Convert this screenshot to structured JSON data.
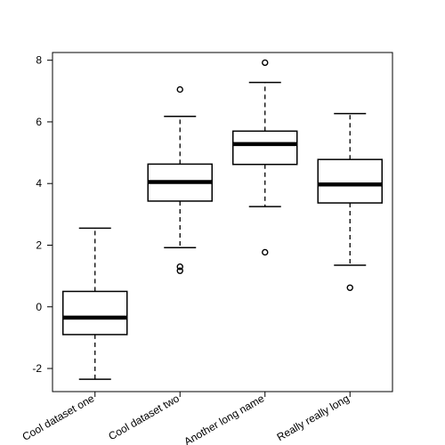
{
  "chart_data": {
    "type": "boxplot",
    "categories": [
      "Cool dataset one",
      "Cool dataset two",
      "Another long name",
      "Really really long"
    ],
    "boxes": [
      {
        "whisker_low": -2.35,
        "q1": -0.9,
        "median": -0.35,
        "q3": 0.5,
        "whisker_high": 2.55,
        "outliers": []
      },
      {
        "whisker_low": 1.92,
        "q1": 3.43,
        "median": 4.05,
        "q3": 4.63,
        "whisker_high": 6.18,
        "outliers": [
          7.05,
          1.3,
          1.17
        ]
      },
      {
        "whisker_low": 3.25,
        "q1": 4.62,
        "median": 5.28,
        "q3": 5.7,
        "whisker_high": 7.28,
        "outliers": [
          7.92,
          1.77
        ]
      },
      {
        "whisker_low": 1.35,
        "q1": 3.37,
        "median": 3.97,
        "q3": 4.78,
        "whisker_high": 6.27,
        "outliers": [
          0.62
        ]
      }
    ],
    "y_ticks": [
      -2,
      0,
      2,
      4,
      6,
      8
    ],
    "ylim": [
      -2.75,
      8.25
    ],
    "title": "",
    "xlabel": "",
    "ylabel": "",
    "grid": false,
    "color_box_border": "#000000",
    "color_median": "#000000"
  }
}
